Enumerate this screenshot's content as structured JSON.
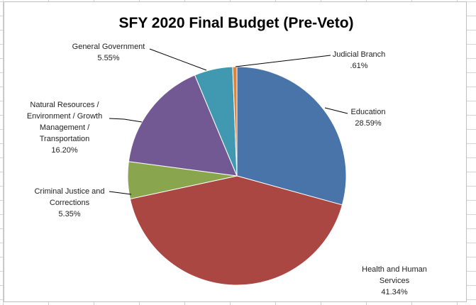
{
  "chart_data": {
    "type": "pie",
    "title": "SFY 2020 Final Budget (Pre-Veto)",
    "slices": [
      {
        "name": "Education",
        "value": 28.59,
        "value_label": "28.59%",
        "label_lines": [
          "Education"
        ],
        "color": "#4874AA"
      },
      {
        "name": "Health and Human Services",
        "value": 41.34,
        "value_label": "41.34%",
        "label_lines": [
          "Health and Human",
          "Services"
        ],
        "color": "#AA4743"
      },
      {
        "name": "Criminal Justice and Corrections",
        "value": 5.35,
        "value_label": "5.35%",
        "label_lines": [
          "Criminal Justice and",
          "Corrections"
        ],
        "color": "#89A54E"
      },
      {
        "name": "Natural Resources / Environment / Growth Management / Transportation",
        "value": 16.2,
        "value_label": "16.20%",
        "label_lines": [
          "Natural Resources /",
          "Environment / Growth",
          "Management /",
          "Transportation"
        ],
        "color": "#735994"
      },
      {
        "name": "General Government",
        "value": 5.55,
        "value_label": "5.55%",
        "label_lines": [
          "General Government"
        ],
        "color": "#4099B0"
      },
      {
        "name": "Judicial Branch",
        "value": 0.61,
        "value_label": ".61%",
        "label_lines": [
          "Judicial Branch"
        ],
        "color": "#DB843D"
      }
    ]
  }
}
